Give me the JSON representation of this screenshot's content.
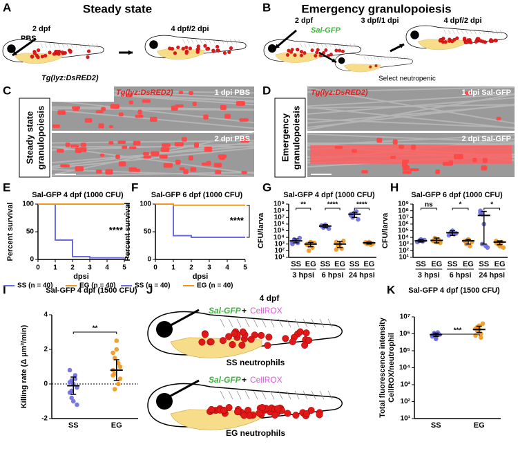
{
  "letters": [
    "A",
    "B",
    "C",
    "D",
    "E",
    "F",
    "G",
    "H",
    "I",
    "J",
    "K"
  ],
  "panel_a": {
    "title": "Steady state",
    "stage1": "2 dpf",
    "stage2": "4 dpf/2 dpi",
    "injection": "PBS",
    "line": "Tg(lyz:DsRED2)"
  },
  "panel_b": {
    "title": "Emergency granulopoiesis",
    "stage1": "2 dpf",
    "injection": "Sal-GFP",
    "stage2": "3 dpf/1 dpi",
    "stage3": "4 dpf/2 dpi",
    "note": "Select neutropenic"
  },
  "panel_c": {
    "side": [
      "Steady state",
      "granulopoiesis"
    ],
    "line": "Tg(lyz:DsRED2)",
    "top": "1 dpi PBS",
    "bottom": "2 dpi PBS"
  },
  "panel_d": {
    "side": [
      "Emergency",
      "granulopoiesis"
    ],
    "line": "Tg(lyz:DsRED2)",
    "top": "1 dpi Sal-GFP",
    "bottom": "2 dpi Sal-GFP"
  },
  "panel_j": {
    "title": "4 dpf",
    "injection": "Sal-GFP",
    "plus": "+",
    "dye": "CellROX",
    "ss": "SS neutrophils",
    "eg": "EG neutrophils"
  },
  "chart_data": [
    {
      "type": "line",
      "title": "Sal-GFP 4 dpf (1000 CFU)",
      "xlabel": "dpsi",
      "ylabel": "Percent survival",
      "xlim": [
        0,
        5
      ],
      "ylim": [
        0,
        100
      ],
      "xticks": [
        0,
        1,
        2,
        3,
        4,
        5
      ],
      "yticks": [
        0,
        50,
        100
      ],
      "significance": "****",
      "series": [
        {
          "name": "SS (n = 40)",
          "color": "#6b6be0",
          "x": [
            0,
            1,
            1,
            2,
            2,
            3,
            3,
            5
          ],
          "values": [
            100,
            100,
            35,
            35,
            5,
            5,
            3,
            3
          ]
        },
        {
          "name": "EG (n = 40)",
          "color": "#f0961e",
          "x": [
            0,
            5
          ],
          "values": [
            100,
            100
          ]
        }
      ]
    },
    {
      "type": "line",
      "title": "Sal-GFP 6 dpf (1000 CFU)",
      "xlabel": "dpsi",
      "ylabel": "Percent survival",
      "xlim": [
        0,
        5
      ],
      "ylim": [
        0,
        100
      ],
      "xticks": [
        0,
        1,
        2,
        3,
        4,
        5
      ],
      "yticks": [
        0,
        50,
        100
      ],
      "significance": "****",
      "series": [
        {
          "name": "SS (n = 40)",
          "color": "#6b6be0",
          "x": [
            0,
            1,
            1,
            2,
            2,
            5
          ],
          "values": [
            100,
            100,
            43,
            43,
            40,
            40
          ]
        },
        {
          "name": "EG (n = 40)",
          "color": "#f0961e",
          "x": [
            0,
            1,
            1,
            5
          ],
          "values": [
            100,
            100,
            98,
            98
          ]
        }
      ]
    },
    {
      "type": "strip",
      "log": true,
      "title": "Sal-GFP 4 dpf (1000 CFU)",
      "ylabel": "CFU/larva",
      "ylim": [
        10,
        1000000000
      ],
      "yticks": [
        {
          "value": 10,
          "label": "10¹"
        },
        {
          "value": 100,
          "label": "10²"
        },
        {
          "value": 1000,
          "label": "10³"
        },
        {
          "value": 10000,
          "label": "10⁴"
        },
        {
          "value": 100000,
          "label": "10⁵"
        },
        {
          "value": 1000000,
          "label": "10⁶"
        },
        {
          "value": 10000000,
          "label": "10⁷"
        },
        {
          "value": 100000000,
          "label": "10⁸"
        },
        {
          "value": 1000000000,
          "label": "10⁹"
        }
      ],
      "categories": [
        "SS",
        "EG",
        "SS",
        "EG",
        "SS",
        "EG"
      ],
      "groups": [
        "3 hpsi",
        "6 hpsi",
        "24 hpsi"
      ],
      "significance": [
        "**",
        "****",
        "****"
      ],
      "colors": [
        "#6b6be0",
        "#f0961e"
      ],
      "points": [
        [
          2000,
          5000,
          3000,
          1500,
          8000,
          1000,
          4000
        ],
        [
          1000,
          600,
          2000,
          300,
          1500,
          800,
          100
        ],
        [
          500000,
          300000,
          800000,
          400000,
          200000,
          600000
        ],
        [
          2000,
          500,
          1000,
          200,
          3000,
          150,
          800
        ],
        [
          30000000,
          10000000,
          50000000,
          80000000,
          5000000,
          20000000
        ],
        [
          1500,
          1000,
          2000,
          800,
          1200,
          1800
        ]
      ],
      "means": [
        3000,
        1000,
        500000,
        1000,
        30000000,
        1500
      ],
      "ci": [
        [
          1500,
          6000
        ],
        [
          400,
          1800
        ],
        [
          300000,
          800000
        ],
        [
          300,
          2500
        ],
        [
          10000000,
          60000000
        ],
        [
          1000,
          2000
        ]
      ]
    },
    {
      "type": "strip",
      "log": true,
      "title": "Sal-GFP 6 dpf (1000 CFU)",
      "ylabel": "CFU/larva",
      "ylim": [
        10,
        1000000000
      ],
      "yticks": [
        {
          "value": 10,
          "label": "10¹"
        },
        {
          "value": 100,
          "label": "10²"
        },
        {
          "value": 1000,
          "label": "10³"
        },
        {
          "value": 10000,
          "label": "10⁴"
        },
        {
          "value": 100000,
          "label": "10⁵"
        },
        {
          "value": 1000000,
          "label": "10⁶"
        },
        {
          "value": 10000000,
          "label": "10⁷"
        },
        {
          "value": 100000000,
          "label": "10⁸"
        },
        {
          "value": 1000000000,
          "label": "10⁹"
        }
      ],
      "categories": [
        "SS",
        "EG",
        "SS",
        "EG",
        "SS",
        "EG"
      ],
      "groups": [
        "3 hpsi",
        "6 hpsi",
        "24 hpsi"
      ],
      "significance": [
        "ns",
        "*",
        "*"
      ],
      "colors": [
        "#6b6be0",
        "#f0961e"
      ],
      "points": [
        [
          2000,
          3000,
          5000,
          2500,
          4000
        ],
        [
          3000,
          8000,
          2000,
          5000,
          1500
        ],
        [
          20000,
          50000,
          100000,
          30000,
          40000
        ],
        [
          3000,
          1000,
          5000,
          500,
          2000
        ],
        [
          100000000,
          30000000,
          1000000,
          500,
          300,
          50000000,
          1000
        ],
        [
          3000,
          1000,
          500,
          2000,
          300,
          1500
        ]
      ],
      "means": [
        3000,
        3500,
        50000,
        3000,
        20000000,
        2000
      ],
      "ci": [
        [
          2000,
          5000
        ],
        [
          1500,
          8000
        ],
        [
          20000,
          100000
        ],
        [
          1000,
          5000
        ],
        [
          1000,
          80000000
        ],
        [
          800,
          3000
        ]
      ]
    },
    {
      "type": "strip",
      "log": false,
      "zero_line": true,
      "title": "Sal-GFP 4 dpf (1500 CFU)",
      "ylabel": "Killing rate (Δ µm³/min)",
      "ylim": [
        -2,
        4
      ],
      "yticks": [
        -2,
        0,
        2,
        4
      ],
      "categories": [
        "SS",
        "EG"
      ],
      "groups": [],
      "significance": [
        "**"
      ],
      "colors": [
        "#6b6be0",
        "#f0961e"
      ],
      "points": [
        [
          -0.5,
          0.2,
          -1,
          0.5,
          -0.2,
          0.8,
          -0.8,
          0,
          0.3,
          -1.2,
          0.1,
          -0.4
        ],
        [
          0.5,
          1.5,
          2.5,
          0,
          1,
          0.8,
          -0.3,
          2,
          1.2,
          0.3,
          1.8,
          0.6
        ]
      ],
      "means": [
        -0.1,
        0.8
      ],
      "ci": [
        [
          -0.6,
          0.4
        ],
        [
          0.2,
          1.4
        ]
      ]
    },
    {
      "type": "strip",
      "log": true,
      "title": "Sal-GFP 4 dpf (1500 CFU)",
      "ylabel": [
        "Total fluorescence intensity",
        "CellROX/neutrophil"
      ],
      "ylim": [
        10,
        10000000
      ],
      "yticks": [
        {
          "value": 10,
          "label": "10¹"
        },
        {
          "value": 100,
          "label": "10²"
        },
        {
          "value": 1000,
          "label": "10³"
        },
        {
          "value": 10000,
          "label": "10⁴"
        },
        {
          "value": 100000,
          "label": "10⁵"
        },
        {
          "value": 1000000,
          "label": "10⁶"
        },
        {
          "value": 10000000,
          "label": "10⁷"
        }
      ],
      "categories": [
        "SS",
        "EG"
      ],
      "groups": [],
      "significance": [
        "***"
      ],
      "colors": [
        "#6b6be0",
        "#f0961e"
      ],
      "points": [
        [
          800000,
          1000000,
          600000,
          1200000,
          900000,
          700000,
          1100000,
          500000,
          950000
        ],
        [
          2000000,
          1500000,
          3000000,
          1000000,
          4000000,
          800000,
          2500000,
          1800000,
          600000
        ]
      ],
      "means": [
        900000,
        1800000
      ],
      "ci": [
        [
          700000,
          1100000
        ],
        [
          1200000,
          2800000
        ]
      ]
    }
  ]
}
